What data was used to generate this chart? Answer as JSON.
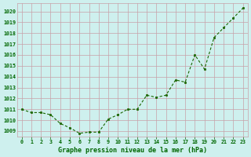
{
  "x": [
    0,
    1,
    2,
    3,
    4,
    5,
    6,
    7,
    8,
    9,
    10,
    11,
    12,
    13,
    14,
    15,
    16,
    17,
    18,
    19,
    20,
    21,
    22,
    23
  ],
  "y": [
    1011.0,
    1010.7,
    1010.7,
    1010.5,
    1009.7,
    1009.3,
    1008.8,
    1008.9,
    1008.9,
    1010.1,
    1010.5,
    1011.0,
    1011.0,
    1012.3,
    1012.1,
    1012.3,
    1013.7,
    1013.5,
    1016.0,
    1014.7,
    1017.6,
    1018.5,
    1019.4,
    1020.3
  ],
  "line_color": "#1a6600",
  "marker_color": "#1a6600",
  "bg_color": "#cef0ee",
  "grid_color": "#c8a0a8",
  "xlabel": "Graphe pression niveau de la mer (hPa)",
  "xlabel_color": "#006600",
  "tick_label_color": "#006600",
  "ylim": [
    1008.5,
    1020.75
  ],
  "xlim": [
    -0.5,
    23.5
  ],
  "yticks": [
    1009,
    1010,
    1011,
    1012,
    1013,
    1014,
    1015,
    1016,
    1017,
    1018,
    1019,
    1020
  ],
  "xtick_labels": [
    "0",
    "1",
    "2",
    "3",
    "4",
    "5",
    "6",
    "7",
    "8",
    "9",
    "10",
    "11",
    "12",
    "13",
    "14",
    "15",
    "16",
    "17",
    "18",
    "19",
    "20",
    "21",
    "22",
    "23"
  ],
  "figsize": [
    3.2,
    2.0
  ],
  "dpi": 100
}
